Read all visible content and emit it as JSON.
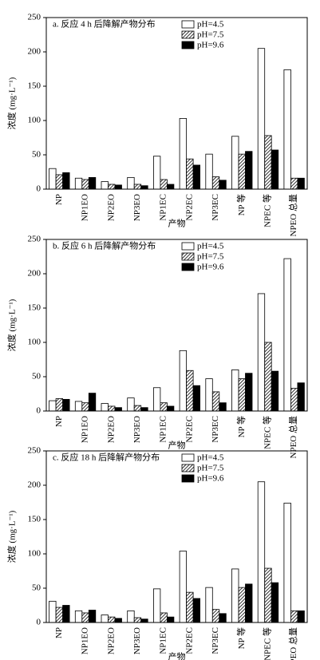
{
  "chart_data": [
    {
      "type": "bar",
      "title": "a. 反应 4 h 后降解产物分布",
      "x_label": "产物",
      "y_label": "浓度 (mg·L⁻¹)",
      "categories": [
        "NP",
        "NP1EO",
        "NP2EO",
        "NP3EO",
        "NP1EC",
        "NP2EC",
        "NP3EC",
        "NP 等",
        "NPEC 等",
        "NPEO 总量"
      ],
      "series": [
        {
          "name": "pH=4.5",
          "color": "#ffffff",
          "values": [
            30,
            16,
            11,
            17,
            48,
            103,
            51,
            77,
            205,
            174
          ]
        },
        {
          "name": "pH=7.5",
          "color": "#ffffff",
          "pattern": "hatch",
          "values": [
            21,
            14,
            7,
            7,
            14,
            44,
            18,
            51,
            78,
            16
          ]
        },
        {
          "name": "pH=9.6",
          "color": "#000000",
          "values": [
            24,
            17,
            6,
            5,
            7,
            35,
            13,
            55,
            57,
            16
          ]
        }
      ],
      "ylim": [
        0,
        250
      ],
      "yticks": [
        0,
        50,
        100,
        150,
        200,
        250
      ],
      "legend": "upper right"
    },
    {
      "type": "bar",
      "title": "b. 反应 6 h 后降解产物分布",
      "x_label": "产物",
      "y_label": "浓度 (mg·L⁻¹)",
      "categories": [
        "NP",
        "NP1EO",
        "NP2EO",
        "NP3EO",
        "NP1EC",
        "NP2EC",
        "NP3EC",
        "NP 等",
        "NPEC 等",
        "NPEO 总量"
      ],
      "series": [
        {
          "name": "pH=4.5",
          "color": "#ffffff",
          "values": [
            15,
            14,
            11,
            19,
            34,
            88,
            47,
            60,
            171,
            222
          ]
        },
        {
          "name": "pH=7.5",
          "color": "#ffffff",
          "pattern": "hatch",
          "values": [
            18,
            12,
            7,
            8,
            12,
            59,
            28,
            47,
            100,
            33
          ]
        },
        {
          "name": "pH=9.6",
          "color": "#000000",
          "values": [
            17,
            26,
            5,
            5,
            7,
            37,
            12,
            55,
            58,
            41
          ]
        }
      ],
      "ylim": [
        0,
        250
      ],
      "yticks": [
        0,
        50,
        100,
        150,
        200,
        250
      ],
      "legend": "upper right"
    },
    {
      "type": "bar",
      "title": "c. 反应 18 h 后降解产物分布",
      "x_label": "产物",
      "y_label": "浓度 (mg·L⁻¹)",
      "categories": [
        "NP",
        "NP1EO",
        "NP2EO",
        "NP3EO",
        "NP1EC",
        "NP2EC",
        "NP3EC",
        "NP 等",
        "NPEC 等",
        "NPEO 总量"
      ],
      "series": [
        {
          "name": "pH=4.5",
          "color": "#ffffff",
          "values": [
            31,
            17,
            11,
            17,
            49,
            104,
            51,
            78,
            205,
            174
          ]
        },
        {
          "name": "pH=7.5",
          "color": "#ffffff",
          "pattern": "hatch",
          "values": [
            22,
            14,
            8,
            7,
            14,
            44,
            19,
            51,
            79,
            17
          ]
        },
        {
          "name": "pH=9.6",
          "color": "#000000",
          "values": [
            25,
            18,
            6,
            5,
            8,
            35,
            13,
            56,
            58,
            17
          ]
        }
      ],
      "ylim": [
        0,
        250
      ],
      "yticks": [
        0,
        50,
        100,
        150,
        200,
        250
      ],
      "legend": "upper right"
    }
  ]
}
